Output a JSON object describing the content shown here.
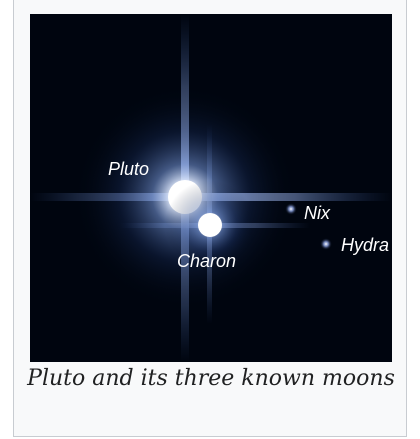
{
  "figure": {
    "labels": [
      "Pluto",
      "Charon",
      "Nix",
      "Hydra"
    ],
    "caption": "Pluto and its three known moons"
  }
}
